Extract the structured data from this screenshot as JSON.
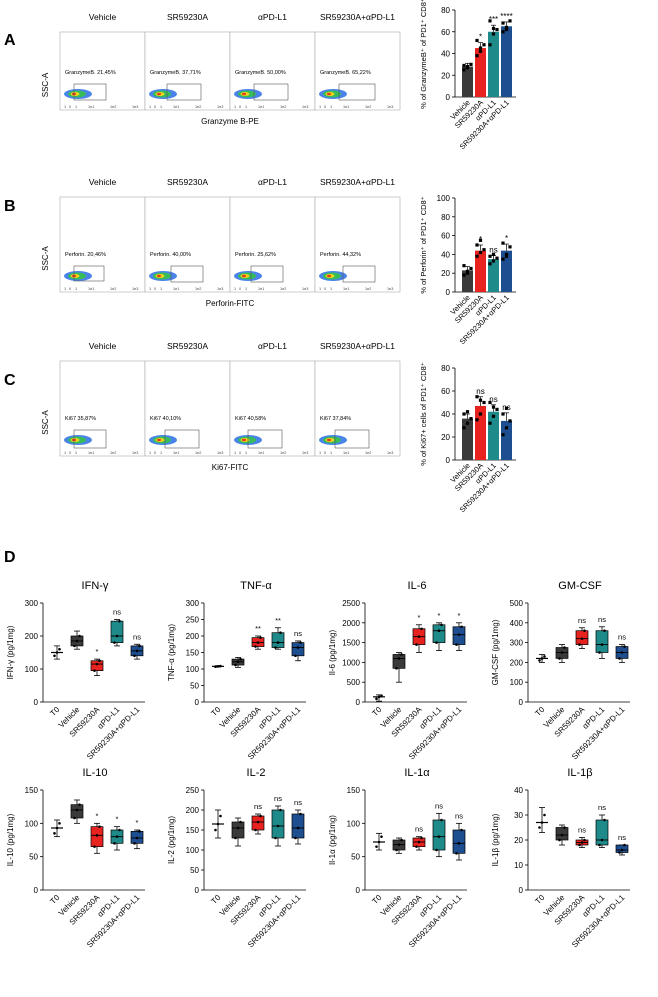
{
  "figure": {
    "panel_letters": [
      "A",
      "B",
      "C",
      "D"
    ],
    "flow_rows": [
      {
        "letter": "A",
        "x_axis_label": "Granzyme B-PE",
        "y_axis_label": "SSC-A",
        "plots": [
          {
            "title": "Vehicle",
            "gate": "GranzymeB. 21,45%"
          },
          {
            "title": "SR59230A",
            "gate": "GranzymeB. 37,71%"
          },
          {
            "title": "αPD-L1",
            "gate": "GranzymeB. 50,00%"
          },
          {
            "title": "SR59230A+αPD-L1",
            "gate": "GranzymeB. 65,22%"
          }
        ]
      },
      {
        "letter": "B",
        "x_axis_label": "Perforin-FITC",
        "y_axis_label": "SSC-A",
        "plots": [
          {
            "title": "Vehicle",
            "gate": "Perforin. 20,46%"
          },
          {
            "title": "SR59230A",
            "gate": "Perforin. 40,00%"
          },
          {
            "title": "αPD-L1",
            "gate": "Perforin. 25,62%"
          },
          {
            "title": "SR59230A+αPD-L1",
            "gate": "Perforin. 44,32%"
          }
        ]
      },
      {
        "letter": "C",
        "x_axis_label": "Ki67-FITC",
        "y_axis_label": "SSC-A",
        "plots": [
          {
            "title": "Vehicle",
            "gate": "Ki67 35,87%"
          },
          {
            "title": "SR59230A",
            "gate": "Ki67 40,10%"
          },
          {
            "title": "αPD-L1",
            "gate": "Ki67 40,58%"
          },
          {
            "title": "SR59230A+αPD-L1",
            "gate": "Ki67 37,84%"
          }
        ]
      }
    ],
    "flow_axis_ticks": [
      "1",
      "0",
      "1",
      "1e1",
      "1e2",
      "1e3"
    ],
    "colors": {
      "Vehicle": "#3a3a3a",
      "SR59230A": "#e8231f",
      "aPD-L1": "#1f8a8a",
      "combo": "#1d4e8f",
      "T0": "#ffffff"
    }
  },
  "chart_data": [
    {
      "type": "bar",
      "panel": "A",
      "ylabel": "% of GranzymeB⁺ of PD1⁺ CD8⁺",
      "ylim": [
        0,
        80
      ],
      "yticks": [
        "0",
        "20",
        "40",
        "60",
        "80"
      ],
      "categories": [
        "Vehicle",
        "SR59230A",
        "αPD-L1",
        "SR59230A+αPD-L1"
      ],
      "values": [
        28,
        45,
        60,
        65
      ],
      "errors": [
        3,
        5,
        6,
        4
      ],
      "points": [
        [
          25,
          28,
          30,
          29,
          27
        ],
        [
          38,
          42,
          48,
          52,
          45
        ],
        [
          48,
          58,
          62,
          70,
          63
        ],
        [
          60,
          62,
          70,
          68,
          64
        ]
      ],
      "significance": [
        "",
        "*",
        "***",
        "****"
      ]
    },
    {
      "type": "bar",
      "panel": "B",
      "ylabel": "% of Perforin⁺ of PD1⁺ CD8⁺",
      "ylim": [
        0,
        100
      ],
      "yticks": [
        "0",
        "20",
        "40",
        "60",
        "80",
        "100"
      ],
      "categories": [
        "Vehicle",
        "SR59230A",
        "αPD-L1",
        "SR59230A+αPD-L1"
      ],
      "values": [
        23,
        44,
        35,
        44
      ],
      "errors": [
        4,
        6,
        4,
        7
      ],
      "points": [
        [
          18,
          22,
          25,
          28,
          20
        ],
        [
          38,
          42,
          45,
          50,
          55
        ],
        [
          30,
          33,
          36,
          38,
          40
        ],
        [
          35,
          40,
          48,
          52,
          38
        ]
      ],
      "significance": [
        "",
        "*",
        "ns",
        "*"
      ]
    },
    {
      "type": "bar",
      "panel": "C",
      "ylabel": "% of Ki67+ cells of PD1⁺ CD8⁺",
      "ylim": [
        0,
        80
      ],
      "yticks": [
        "0",
        "20",
        "40",
        "60",
        "80"
      ],
      "categories": [
        "Vehicle",
        "SR59230A",
        "αPD-L1",
        "SR59230A+αPD-L1"
      ],
      "values": [
        36,
        47,
        42,
        34
      ],
      "errors": [
        4,
        8,
        6,
        7
      ],
      "points": [
        [
          28,
          32,
          36,
          40,
          42
        ],
        [
          35,
          40,
          50,
          55,
          52
        ],
        [
          32,
          38,
          44,
          50,
          46
        ],
        [
          22,
          28,
          34,
          40,
          45
        ]
      ],
      "significance": [
        "",
        "ns",
        "ns",
        "ns"
      ]
    },
    {
      "type": "box",
      "panel": "D",
      "title": "IFN-γ",
      "ylabel": "IFN-γ (pg/1mg)",
      "ylim": [
        0,
        300
      ],
      "yticks": [
        "0",
        "100",
        "200",
        "300"
      ],
      "categories": [
        "T0",
        "Vehicle",
        "SR59230A",
        "αPD-L1",
        "SR59230A+αPD-L1"
      ],
      "boxes": [
        {
          "min": 130,
          "q1": 140,
          "median": 150,
          "q3": 160,
          "max": 170
        },
        {
          "min": 160,
          "q1": 170,
          "median": 185,
          "q3": 200,
          "max": 215
        },
        {
          "min": 80,
          "q1": 95,
          "median": 115,
          "q3": 125,
          "max": 130
        },
        {
          "min": 170,
          "q1": 180,
          "median": 200,
          "q3": 245,
          "max": 250
        },
        {
          "min": 130,
          "q1": 140,
          "median": 155,
          "q3": 170,
          "max": 175
        }
      ],
      "significance": [
        "",
        "",
        "*",
        "ns",
        "ns"
      ]
    },
    {
      "type": "box",
      "panel": "D",
      "title": "TNF-α",
      "ylabel": "TNF-α (pg/1mg)",
      "ylim": [
        0,
        300
      ],
      "yticks": [
        "0",
        "50",
        "100",
        "150",
        "200",
        "250",
        "300"
      ],
      "categories": [
        "T0",
        "Vehicle",
        "SR59230A",
        "αPD-L1",
        "SR59230A+αPD-L1"
      ],
      "boxes": [
        {
          "min": 106,
          "q1": 107,
          "median": 108,
          "q3": 109,
          "max": 110
        },
        {
          "min": 105,
          "q1": 112,
          "median": 122,
          "q3": 130,
          "max": 135
        },
        {
          "min": 160,
          "q1": 168,
          "median": 180,
          "q3": 195,
          "max": 200
        },
        {
          "min": 160,
          "q1": 165,
          "median": 180,
          "q3": 210,
          "max": 225
        },
        {
          "min": 125,
          "q1": 140,
          "median": 165,
          "q3": 180,
          "max": 185
        }
      ],
      "significance": [
        "",
        "",
        "**",
        "**",
        "ns"
      ]
    },
    {
      "type": "box",
      "panel": "D",
      "title": "IL-6",
      "ylabel": "Il-6 (pg/1mg)",
      "ylim": [
        0,
        2500
      ],
      "yticks": [
        "0",
        "500",
        "1000",
        "1500",
        "2000",
        "2500"
      ],
      "categories": [
        "T0",
        "Vehicle",
        "SR59230A",
        "αPD-L1",
        "SR59230A+αPD-L1"
      ],
      "boxes": [
        {
          "min": 20,
          "q1": 80,
          "median": 130,
          "q3": 160,
          "max": 180
        },
        {
          "min": 500,
          "q1": 850,
          "median": 1100,
          "q3": 1200,
          "max": 1250
        },
        {
          "min": 1250,
          "q1": 1450,
          "median": 1650,
          "q3": 1850,
          "max": 1950
        },
        {
          "min": 1300,
          "q1": 1500,
          "median": 1800,
          "q3": 1950,
          "max": 2000
        },
        {
          "min": 1300,
          "q1": 1450,
          "median": 1700,
          "q3": 1900,
          "max": 2000
        }
      ],
      "significance": [
        "",
        "",
        "*",
        "*",
        "*"
      ]
    },
    {
      "type": "box",
      "panel": "D",
      "title": "GM-CSF",
      "ylabel": "GM-CSF (pg/1mg)",
      "ylim": [
        0,
        500
      ],
      "yticks": [
        "0",
        "100",
        "200",
        "300",
        "400",
        "500"
      ],
      "categories": [
        "T0",
        "Vehicle",
        "SR59230A",
        "αPD-L1",
        "SR59230A+αPD-L1"
      ],
      "boxes": [
        {
          "min": 200,
          "q1": 210,
          "median": 220,
          "q3": 230,
          "max": 240
        },
        {
          "min": 200,
          "q1": 220,
          "median": 250,
          "q3": 275,
          "max": 290
        },
        {
          "min": 270,
          "q1": 290,
          "median": 320,
          "q3": 360,
          "max": 375
        },
        {
          "min": 220,
          "q1": 250,
          "median": 290,
          "q3": 360,
          "max": 380
        },
        {
          "min": 200,
          "q1": 220,
          "median": 250,
          "q3": 280,
          "max": 290
        }
      ],
      "significance": [
        "",
        "",
        "ns",
        "ns",
        "ns"
      ]
    },
    {
      "type": "box",
      "panel": "D",
      "title": "IL-10",
      "ylabel": "IL-10 (pg/1mg)",
      "ylim": [
        0,
        150
      ],
      "yticks": [
        "0",
        "50",
        "100",
        "150"
      ],
      "categories": [
        "T0",
        "Vehicle",
        "SR59230A",
        "αPD-L1",
        "SR59230A+αPD-L1"
      ],
      "boxes": [
        {
          "min": 80,
          "q1": 85,
          "median": 93,
          "q3": 100,
          "max": 105
        },
        {
          "min": 100,
          "q1": 108,
          "median": 120,
          "q3": 128,
          "max": 135
        },
        {
          "min": 55,
          "q1": 65,
          "median": 82,
          "q3": 95,
          "max": 100
        },
        {
          "min": 60,
          "q1": 70,
          "median": 80,
          "q3": 90,
          "max": 95
        },
        {
          "min": 62,
          "q1": 70,
          "median": 78,
          "q3": 88,
          "max": 90
        }
      ],
      "significance": [
        "",
        "",
        "*",
        "*",
        "*"
      ]
    },
    {
      "type": "box",
      "panel": "D",
      "title": "IL-2",
      "ylabel": "IL-2 (pg/1mg)",
      "ylim": [
        0,
        250
      ],
      "yticks": [
        "0",
        "50",
        "100",
        "150",
        "200",
        "250"
      ],
      "categories": [
        "T0",
        "Vehicle",
        "SR59230A",
        "αPD-L1",
        "SR59230A+αPD-L1"
      ],
      "boxes": [
        {
          "min": 130,
          "q1": 150,
          "median": 165,
          "q3": 185,
          "max": 200
        },
        {
          "min": 110,
          "q1": 130,
          "median": 155,
          "q3": 170,
          "max": 180
        },
        {
          "min": 140,
          "q1": 150,
          "median": 170,
          "q3": 185,
          "max": 190
        },
        {
          "min": 110,
          "q1": 130,
          "median": 160,
          "q3": 200,
          "max": 210
        },
        {
          "min": 115,
          "q1": 130,
          "median": 155,
          "q3": 190,
          "max": 200
        }
      ],
      "significance": [
        "",
        "",
        "ns",
        "ns",
        "ns"
      ]
    },
    {
      "type": "box",
      "panel": "D",
      "title": "IL-1α",
      "ylabel": "Il-1α (pg/1mg)",
      "ylim": [
        0,
        150
      ],
      "yticks": [
        "0",
        "50",
        "100",
        "150"
      ],
      "categories": [
        "T0",
        "Vehicle",
        "SR59230A",
        "αPD-L1",
        "SR59230A+αPD-L1"
      ],
      "boxes": [
        {
          "min": 60,
          "q1": 65,
          "median": 72,
          "q3": 80,
          "max": 85
        },
        {
          "min": 55,
          "q1": 60,
          "median": 68,
          "q3": 75,
          "max": 78
        },
        {
          "min": 60,
          "q1": 65,
          "median": 72,
          "q3": 78,
          "max": 80
        },
        {
          "min": 50,
          "q1": 60,
          "median": 80,
          "q3": 105,
          "max": 115
        },
        {
          "min": 45,
          "q1": 55,
          "median": 70,
          "q3": 90,
          "max": 100
        }
      ],
      "significance": [
        "",
        "",
        "ns",
        "ns",
        "ns"
      ]
    },
    {
      "type": "box",
      "panel": "D",
      "title": "IL-1β",
      "ylabel": "IL-1β (pg/1mg)",
      "ylim": [
        0,
        40
      ],
      "yticks": [
        "0",
        "10",
        "20",
        "30",
        "40"
      ],
      "categories": [
        "T0",
        "Vehicle",
        "SR59230A",
        "αPD-L1",
        "SR59230A+αPD-L1"
      ],
      "boxes": [
        {
          "min": 23,
          "q1": 25,
          "median": 27,
          "q3": 30,
          "max": 33
        },
        {
          "min": 18,
          "q1": 20,
          "median": 22,
          "q3": 25,
          "max": 26
        },
        {
          "min": 17,
          "q1": 18,
          "median": 19,
          "q3": 20,
          "max": 21
        },
        {
          "min": 17,
          "q1": 18,
          "median": 20,
          "q3": 28,
          "max": 30
        },
        {
          "min": 14,
          "q1": 15,
          "median": 16,
          "q3": 18,
          "max": 18
        }
      ],
      "significance": [
        "",
        "",
        "ns",
        "ns",
        "ns"
      ]
    }
  ]
}
